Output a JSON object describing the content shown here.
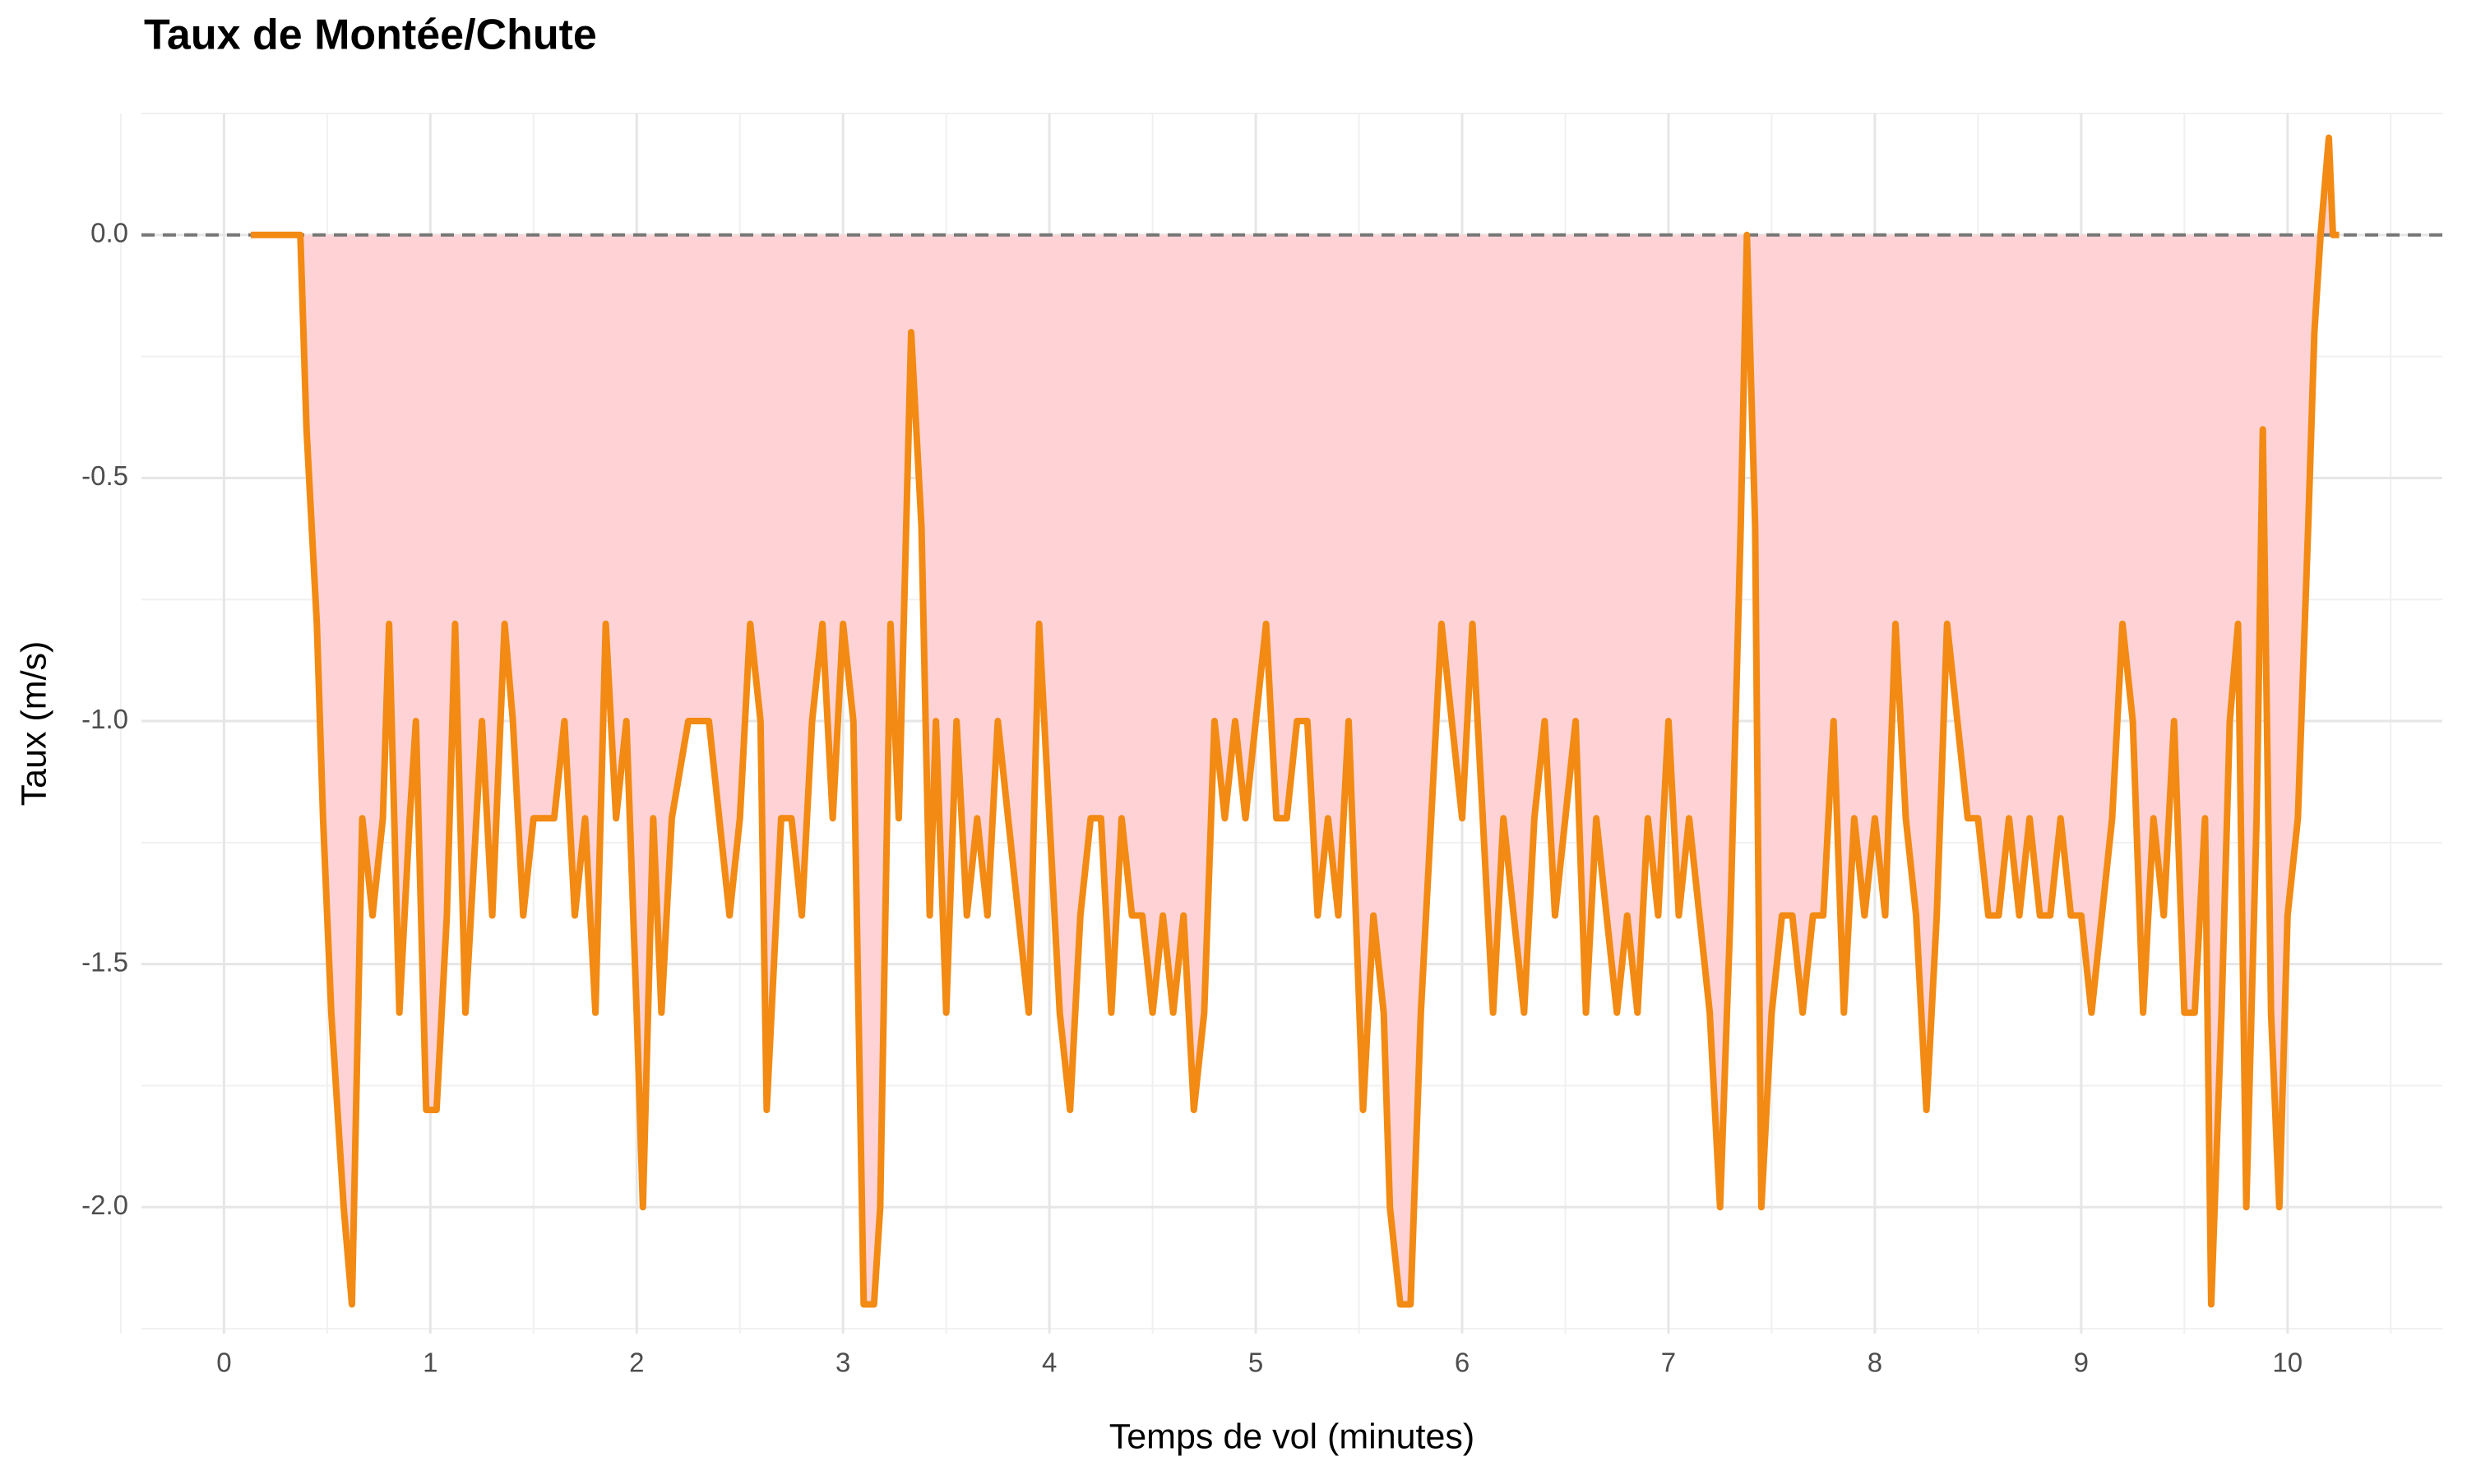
{
  "chart_data": {
    "type": "line",
    "title": "Taux de Montée/Chute",
    "x_label": "Temps de vol (minutes)",
    "y_label": "Taux (m/s)",
    "color": "#f28a13",
    "fill_color": "#ffd3d6",
    "hline": 0,
    "grid": true,
    "xlim": [
      -0.4,
      10.75
    ],
    "ylim": [
      -2.26,
      0.25
    ],
    "xticks": [
      0,
      1,
      2,
      3,
      4,
      5,
      6,
      7,
      8,
      9,
      10
    ],
    "yticks": [
      {
        "value": 0,
        "label": "0.0"
      },
      {
        "value": -0.5,
        "label": "-0.5"
      },
      {
        "value": -1,
        "label": "-1.0"
      },
      {
        "value": -1.5,
        "label": "-1.5"
      },
      {
        "value": -2,
        "label": "-2.0"
      }
    ],
    "x": [
      0.13,
      0.37,
      0.4,
      0.45,
      0.48,
      0.52,
      0.58,
      0.62,
      0.67,
      0.72,
      0.77,
      0.8,
      0.85,
      0.9,
      0.93,
      0.98,
      1.03,
      1.08,
      1.12,
      1.17,
      1.25,
      1.3,
      1.36,
      1.4,
      1.45,
      1.5,
      1.6,
      1.65,
      1.7,
      1.75,
      1.8,
      1.85,
      1.9,
      1.95,
      2.0,
      2.03,
      2.08,
      2.12,
      2.17,
      2.25,
      2.35,
      2.45,
      2.5,
      2.55,
      2.6,
      2.63,
      2.7,
      2.75,
      2.8,
      2.85,
      2.9,
      2.95,
      3.0,
      3.05,
      3.1,
      3.15,
      3.18,
      3.23,
      3.27,
      3.33,
      3.38,
      3.42,
      3.45,
      3.5,
      3.55,
      3.6,
      3.65,
      3.7,
      3.75,
      3.8,
      3.85,
      3.9,
      3.95,
      4.0,
      4.05,
      4.1,
      4.15,
      4.2,
      4.25,
      4.3,
      4.35,
      4.4,
      4.45,
      4.5,
      4.55,
      4.6,
      4.65,
      4.7,
      4.75,
      4.8,
      4.85,
      4.9,
      4.95,
      5.0,
      5.05,
      5.1,
      5.15,
      5.2,
      5.25,
      5.3,
      5.35,
      5.4,
      5.45,
      5.52,
      5.57,
      5.62,
      5.65,
      5.7,
      5.75,
      5.8,
      5.85,
      5.9,
      5.95,
      6.0,
      6.05,
      6.1,
      6.15,
      6.2,
      6.25,
      6.3,
      6.35,
      6.4,
      6.45,
      6.5,
      6.55,
      6.6,
      6.65,
      6.7,
      6.75,
      6.8,
      6.85,
      6.9,
      6.95,
      7.0,
      7.05,
      7.1,
      7.15,
      7.2,
      7.25,
      7.3,
      7.35,
      7.38,
      7.42,
      7.45,
      7.5,
      7.55,
      7.6,
      7.65,
      7.7,
      7.75,
      7.8,
      7.85,
      7.9,
      7.95,
      8.0,
      8.05,
      8.1,
      8.15,
      8.2,
      8.25,
      8.3,
      8.35,
      8.4,
      8.45,
      8.5,
      8.55,
      8.6,
      8.65,
      8.7,
      8.75,
      8.8,
      8.85,
      8.9,
      8.95,
      9.0,
      9.05,
      9.1,
      9.15,
      9.2,
      9.25,
      9.3,
      9.35,
      9.4,
      9.45,
      9.5,
      9.55,
      9.6,
      9.63,
      9.68,
      9.72,
      9.76,
      9.8,
      9.85,
      9.88,
      9.92,
      9.96,
      10.0,
      10.05,
      10.1,
      10.13,
      10.16,
      10.2,
      10.22,
      10.25
    ],
    "values": [
      0,
      0,
      -0.4,
      -0.8,
      -1.2,
      -1.6,
      -2.0,
      -2.2,
      -1.2,
      -1.4,
      -1.2,
      -0.8,
      -1.6,
      -1.2,
      -1.0,
      -1.8,
      -1.8,
      -1.4,
      -0.8,
      -1.6,
      -1.0,
      -1.4,
      -0.8,
      -1.0,
      -1.4,
      -1.2,
      -1.2,
      -1.0,
      -1.4,
      -1.2,
      -1.6,
      -0.8,
      -1.2,
      -1.0,
      -1.6,
      -2.0,
      -1.2,
      -1.6,
      -1.2,
      -1.0,
      -1.0,
      -1.4,
      -1.2,
      -0.8,
      -1.0,
      -1.8,
      -1.2,
      -1.2,
      -1.4,
      -1.0,
      -0.8,
      -1.2,
      -0.8,
      -1.0,
      -2.2,
      -2.2,
      -2.0,
      -0.8,
      -1.2,
      -0.2,
      -0.6,
      -1.4,
      -1.0,
      -1.6,
      -1.0,
      -1.4,
      -1.2,
      -1.4,
      -1.0,
      -1.2,
      -1.4,
      -1.6,
      -0.8,
      -1.2,
      -1.6,
      -1.8,
      -1.4,
      -1.2,
      -1.2,
      -1.6,
      -1.2,
      -1.4,
      -1.4,
      -1.6,
      -1.4,
      -1.6,
      -1.4,
      -1.8,
      -1.6,
      -1.0,
      -1.2,
      -1.0,
      -1.2,
      -1.0,
      -0.8,
      -1.2,
      -1.2,
      -1.0,
      -1.0,
      -1.4,
      -1.2,
      -1.4,
      -1.0,
      -1.8,
      -1.4,
      -1.6,
      -2.0,
      -2.2,
      -2.2,
      -1.6,
      -1.2,
      -0.8,
      -1.0,
      -1.2,
      -0.8,
      -1.2,
      -1.6,
      -1.2,
      -1.4,
      -1.6,
      -1.2,
      -1.0,
      -1.4,
      -1.2,
      -1.0,
      -1.6,
      -1.2,
      -1.4,
      -1.6,
      -1.4,
      -1.6,
      -1.2,
      -1.4,
      -1.0,
      -1.4,
      -1.2,
      -1.4,
      -1.6,
      -2.0,
      -1.4,
      -0.6,
      0.0,
      -0.6,
      -2.0,
      -1.6,
      -1.4,
      -1.4,
      -1.6,
      -1.4,
      -1.4,
      -1.0,
      -1.6,
      -1.2,
      -1.4,
      -1.2,
      -1.4,
      -0.8,
      -1.2,
      -1.4,
      -1.8,
      -1.4,
      -0.8,
      -1.0,
      -1.2,
      -1.2,
      -1.4,
      -1.4,
      -1.2,
      -1.4,
      -1.2,
      -1.4,
      -1.4,
      -1.2,
      -1.4,
      -1.4,
      -1.6,
      -1.4,
      -1.2,
      -0.8,
      -1.0,
      -1.6,
      -1.2,
      -1.4,
      -1.0,
      -1.6,
      -1.6,
      -1.2,
      -2.2,
      -1.6,
      -1.0,
      -0.8,
      -2.0,
      -1.2,
      -0.4,
      -1.6,
      -2.0,
      -1.4,
      -1.2,
      -0.6,
      -0.2,
      0.0,
      0.2,
      0.0,
      0.0
    ]
  }
}
